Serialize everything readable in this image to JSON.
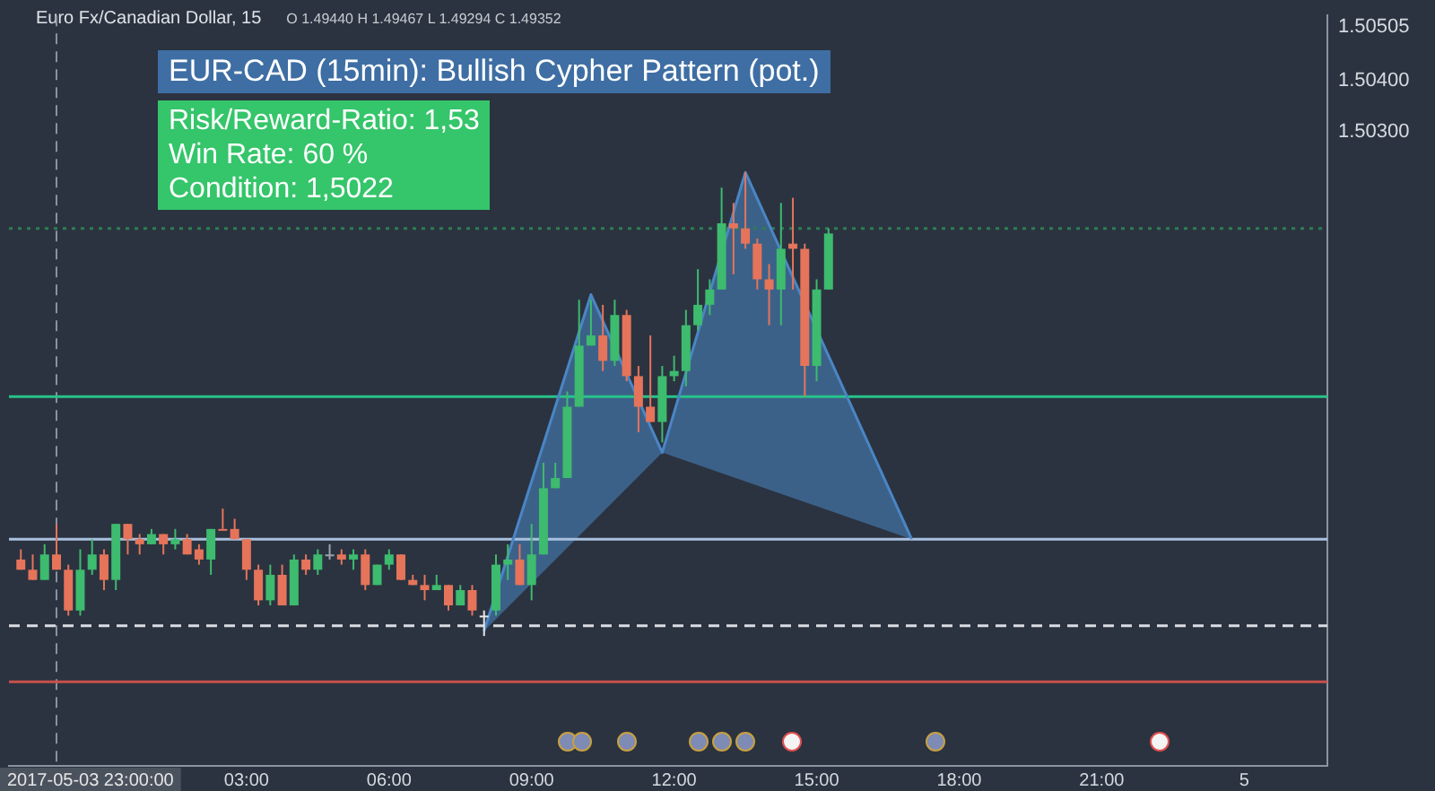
{
  "chart_data": {
    "type": "candlestick",
    "title": "EUR-CAD (15min): Bullish Cypher Pattern (pot.)",
    "subtitle": "Euro Fx/Canadian Dollar, 15",
    "annotations": [
      "O 1.49440 H 1.49467 L 1.49294 C 1.49352",
      "Risk/Reward-Ratio: 1,53",
      "Win Rate: 60 %",
      "Condition: 1,5022"
    ],
    "x": [
      "2017-05-03T22:15",
      "2017-05-03T22:30",
      "2017-05-03T22:45",
      "2017-05-03T23:00",
      "2017-05-03T23:15",
      "2017-05-03T23:30",
      "2017-05-03T23:45",
      "2017-05-04T00:00",
      "2017-05-04T00:15",
      "2017-05-04T00:30",
      "2017-05-04T00:45",
      "2017-05-04T01:00",
      "2017-05-04T01:15",
      "2017-05-04T01:30",
      "2017-05-04T01:45",
      "2017-05-04T02:00",
      "2017-05-04T02:15",
      "2017-05-04T02:30",
      "2017-05-04T02:45",
      "2017-05-04T03:00",
      "2017-05-04T03:15",
      "2017-05-04T03:30",
      "2017-05-04T03:45",
      "2017-05-04T04:00",
      "2017-05-04T04:15",
      "2017-05-04T04:30",
      "2017-05-04T04:45",
      "2017-05-04T05:00",
      "2017-05-04T05:15",
      "2017-05-04T05:30",
      "2017-05-04T05:45",
      "2017-05-04T06:00",
      "2017-05-04T06:15",
      "2017-05-04T06:30",
      "2017-05-04T06:45",
      "2017-05-04T07:00",
      "2017-05-04T07:15",
      "2017-05-04T07:30",
      "2017-05-04T07:45",
      "2017-05-04T08:00",
      "2017-05-04T08:15",
      "2017-05-04T08:30",
      "2017-05-04T08:45",
      "2017-05-04T09:00",
      "2017-05-04T09:15",
      "2017-05-04T09:30",
      "2017-05-04T09:45",
      "2017-05-04T10:00",
      "2017-05-04T10:15",
      "2017-05-04T10:30",
      "2017-05-04T10:45",
      "2017-05-04T11:00",
      "2017-05-04T11:15",
      "2017-05-04T11:30",
      "2017-05-04T11:45",
      "2017-05-04T12:00",
      "2017-05-04T12:15",
      "2017-05-04T12:30",
      "2017-05-04T12:45",
      "2017-05-04T13:00",
      "2017-05-04T13:15",
      "2017-05-04T13:30",
      "2017-05-04T13:45",
      "2017-05-04T14:00",
      "2017-05-04T14:15",
      "2017-05-04T14:30",
      "2017-05-04T14:45",
      "2017-05-04T15:00",
      "2017-05-04T15:15"
    ],
    "ohlc": [
      [
        1.4946,
        1.4948,
        1.4944,
        1.4944
      ],
      [
        1.4944,
        1.4947,
        1.4942,
        1.4942
      ],
      [
        1.4942,
        1.4949,
        1.4942,
        1.4947
      ],
      [
        1.4947,
        1.4953,
        1.4944,
        1.4944
      ],
      [
        1.4944,
        1.4945,
        1.4935,
        1.4936
      ],
      [
        1.4936,
        1.4948,
        1.4935,
        1.4944
      ],
      [
        1.4944,
        1.495,
        1.4943,
        1.4947
      ],
      [
        1.4947,
        1.4948,
        1.494,
        1.4942
      ],
      [
        1.4942,
        1.4953,
        1.494,
        1.4953
      ],
      [
        1.4953,
        1.4953,
        1.4947,
        1.495
      ],
      [
        1.495,
        1.4951,
        1.4947,
        1.4949
      ],
      [
        1.4949,
        1.4952,
        1.4949,
        1.4951
      ],
      [
        1.4951,
        1.4951,
        1.4947,
        1.4949
      ],
      [
        1.4949,
        1.4952,
        1.4948,
        1.495
      ],
      [
        1.495,
        1.4951,
        1.4947,
        1.4947
      ],
      [
        1.4948,
        1.4949,
        1.4945,
        1.4946
      ],
      [
        1.4946,
        1.4952,
        1.4943,
        1.4952
      ],
      [
        1.4952,
        1.4956,
        1.4952,
        1.4952
      ],
      [
        1.4952,
        1.4954,
        1.495,
        1.495
      ],
      [
        1.495,
        1.495,
        1.4942,
        1.4944
      ],
      [
        1.4944,
        1.4945,
        1.4937,
        1.4938
      ],
      [
        1.4938,
        1.4945,
        1.4937,
        1.4943
      ],
      [
        1.4943,
        1.4945,
        1.4937,
        1.4937
      ],
      [
        1.4937,
        1.4947,
        1.4937,
        1.4946
      ],
      [
        1.4946,
        1.4947,
        1.4943,
        1.4944
      ],
      [
        1.4944,
        1.4948,
        1.4943,
        1.4947
      ],
      [
        1.4947,
        1.4949,
        1.4946,
        1.4947
      ],
      [
        1.4947,
        1.4948,
        1.4945,
        1.4946
      ],
      [
        1.4946,
        1.4948,
        1.4944,
        1.4947
      ],
      [
        1.4947,
        1.4948,
        1.494,
        1.4941
      ],
      [
        1.4941,
        1.4945,
        1.4941,
        1.4945
      ],
      [
        1.4945,
        1.4948,
        1.4944,
        1.4947
      ],
      [
        1.4947,
        1.4947,
        1.4942,
        1.4942
      ],
      [
        1.4942,
        1.4943,
        1.4941,
        1.4941
      ],
      [
        1.4941,
        1.4943,
        1.4938,
        1.494
      ],
      [
        1.494,
        1.4943,
        1.494,
        1.4941
      ],
      [
        1.4941,
        1.4941,
        1.4936,
        1.4937
      ],
      [
        1.4937,
        1.4941,
        1.4937,
        1.494
      ],
      [
        1.494,
        1.4941,
        1.4935,
        1.4936
      ],
      [
        1.4935,
        1.4936,
        1.4931,
        1.4935
      ],
      [
        1.4936,
        1.4947,
        1.4935,
        1.4945
      ],
      [
        1.4945,
        1.4949,
        1.4942,
        1.4946
      ],
      [
        1.4946,
        1.4949,
        1.4941,
        1.4941
      ],
      [
        1.4941,
        1.4953,
        1.4938,
        1.4947
      ],
      [
        1.4947,
        1.4965,
        1.4947,
        1.496
      ],
      [
        1.496,
        1.4965,
        1.496,
        1.4962
      ],
      [
        1.4962,
        1.4979,
        1.4962,
        1.4976
      ],
      [
        1.4976,
        1.4997,
        1.4976,
        1.4988
      ],
      [
        1.4988,
        1.4997,
        1.4988,
        1.499
      ],
      [
        1.499,
        1.4996,
        1.4983,
        1.4985
      ],
      [
        1.4985,
        1.4997,
        1.4984,
        1.4994
      ],
      [
        1.4994,
        1.4995,
        1.4981,
        1.4982
      ],
      [
        1.4982,
        1.4984,
        1.4971,
        1.4976
      ],
      [
        1.4976,
        1.499,
        1.4973,
        1.4973
      ],
      [
        1.4973,
        1.4984,
        1.4969,
        1.4982
      ],
      [
        1.4982,
        1.4986,
        1.4981,
        1.4983
      ],
      [
        1.4983,
        1.4995,
        1.498,
        1.4992
      ],
      [
        1.4992,
        1.5003,
        1.4991,
        1.4996
      ],
      [
        1.4996,
        1.5001,
        1.4994,
        1.4999
      ],
      [
        1.4999,
        1.5019,
        1.4999,
        1.5012
      ],
      [
        1.5012,
        1.5016,
        1.5002,
        1.5011
      ],
      [
        1.5011,
        1.5022,
        1.5007,
        1.5008
      ],
      [
        1.5008,
        1.5009,
        1.4999,
        1.5001
      ],
      [
        1.5001,
        1.5004,
        1.4992,
        1.4999
      ],
      [
        1.4999,
        1.5016,
        1.4992,
        1.5007
      ],
      [
        1.5008,
        1.5017,
        1.4999,
        1.5007
      ],
      [
        1.5007,
        1.5008,
        1.4978,
        1.4984
      ],
      [
        1.4984,
        1.5001,
        1.4981,
        1.4999
      ],
      [
        1.4999,
        1.5011,
        1.4999,
        1.501
      ]
    ],
    "colors": [
      "#e5745a",
      "#e5745a",
      "#3dbb6e",
      "#e5745a",
      "#e5745a",
      "#3dbb6e",
      "#3dbb6e",
      "#e5745a",
      "#3dbb6e",
      "#e5745a",
      "#e5745a",
      "#3dbb6e",
      "#e5745a",
      "#3dbb6e",
      "#e5745a",
      "#e5745a",
      "#3dbb6e",
      "#e5745a",
      "#e5745a",
      "#e5745a",
      "#e5745a",
      "#3dbb6e",
      "#e5745a",
      "#3dbb6e",
      "#e5745a",
      "#3dbb6e",
      "#9aa3ad",
      "#e5745a",
      "#3dbb6e",
      "#e5745a",
      "#3dbb6e",
      "#3dbb6e",
      "#e5745a",
      "#e5745a",
      "#e5745a",
      "#3dbb6e",
      "#e5745a",
      "#3dbb6e",
      "#e5745a",
      "#e8e8e8",
      "#3dbb6e",
      "#3dbb6e",
      "#e5745a",
      "#3dbb6e",
      "#3dbb6e",
      "#3dbb6e",
      "#3dbb6e",
      "#3dbb6e",
      "#3dbb6e",
      "#e5745a",
      "#3dbb6e",
      "#e5745a",
      "#e5745a",
      "#e5745a",
      "#3dbb6e",
      "#3dbb6e",
      "#3dbb6e",
      "#3dbb6e",
      "#3dbb6e",
      "#3dbb6e",
      "#e5745a",
      "#e5745a",
      "#e5745a",
      "#e5745a",
      "#3dbb6e",
      "#e5745a",
      "#e5745a",
      "#3dbb6e",
      "#3dbb6e"
    ],
    "series": [
      {
        "type": "line",
        "x": [
          "2017-05-04T08:00",
          "2017-05-04T10:15",
          "2017-05-04T11:45",
          "2017-05-04T13:30",
          "2017-05-04T17:00"
        ],
        "values": [
          1.4932,
          1.4998,
          1.4967,
          1.5022,
          1.495
        ],
        "color": "#4a86c5"
      }
    ],
    "xlim": [
      "2017-05-03T22:00",
      "2017-05-05T01:45"
    ],
    "xticks": [
      {
        "value": "2017-05-04T03:00",
        "label": "03:00"
      },
      {
        "value": "2017-05-04T06:00",
        "label": "06:00"
      },
      {
        "value": "2017-05-04T09:00",
        "label": "09:00"
      },
      {
        "value": "2017-05-04T12:00",
        "label": "12:00"
      },
      {
        "value": "2017-05-04T15:00",
        "label": "15:00"
      },
      {
        "value": "2017-05-04T18:00",
        "label": "18:00"
      },
      {
        "value": "2017-05-04T21:00",
        "label": "21:00"
      },
      {
        "value": "2017-05-05",
        "label": "5"
      }
    ],
    "ylim": [
      1.49055,
      1.50528
    ],
    "yticks": [
      1.50505,
      {
        "value": 1.504,
        "label": "1.50400"
      },
      {
        "value": 1.503,
        "label": "1.50300"
      }
    ],
    "ref_lines": [
      {
        "axis": "x",
        "value": "2017-05-03T23:00",
        "label": "2017-05-03 23:00:00",
        "color": "#8a93a0",
        "line_style": "dashed"
      },
      {
        "axis": "y",
        "value": 1.4933,
        "color": "#d9dde3",
        "line_style": "dashed"
      },
      {
        "axis": "y",
        "value": 1.495,
        "color": "#a9c0de",
        "line_style": "solid"
      },
      {
        "axis": "y",
        "value": 1.4978,
        "color": "#27c48a",
        "line_style": "solid"
      },
      {
        "axis": "y",
        "value": 1.4922,
        "color": "#c9504a",
        "line_style": "solid"
      },
      {
        "axis": "y",
        "value": 1.5011,
        "color": "#2e7d52",
        "line_style": "dotted"
      }
    ]
  }
}
